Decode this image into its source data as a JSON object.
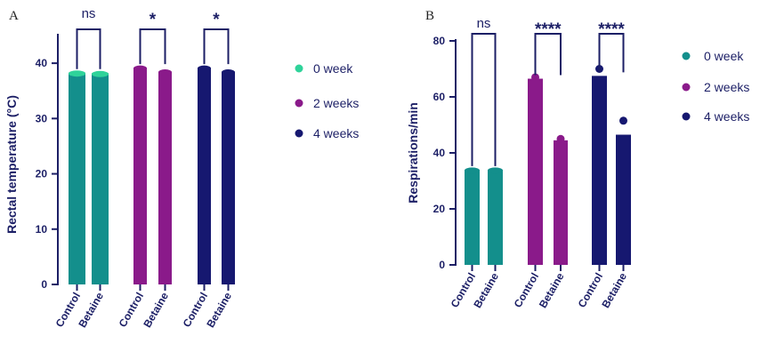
{
  "chart_data": [
    {
      "panel": "A",
      "type": "bar",
      "ylabel": "Rectal temperature (°C)",
      "ylim": [
        0,
        45
      ],
      "yticks": [
        0,
        10,
        20,
        30,
        40
      ],
      "categories": [
        "Control",
        "Betaine"
      ],
      "legend_position": "right",
      "series": [
        {
          "name": "0 week",
          "color": "#138f8c",
          "point_color": "#2fd39a",
          "values": [
            38.3,
            38.2
          ],
          "significance": "ns"
        },
        {
          "name": "2 weeks",
          "color": "#8a1a8a",
          "point_color": "#8a1a8a",
          "values": [
            39.2,
            38.5
          ],
          "significance": "*"
        },
        {
          "name": "4 weeks",
          "color": "#161870",
          "point_color": "#161870",
          "values": [
            39.2,
            38.5
          ],
          "significance": "*"
        }
      ]
    },
    {
      "panel": "B",
      "type": "bar",
      "ylabel": "Respirations/min",
      "ylim": [
        0,
        80
      ],
      "yticks": [
        0,
        20,
        40,
        60,
        80
      ],
      "categories": [
        "Control",
        "Betaine"
      ],
      "legend_position": "right",
      "series": [
        {
          "name": "0 week",
          "color": "#138f8c",
          "point_color": "#138f8c",
          "values": [
            34,
            34
          ],
          "points": [
            34,
            34
          ],
          "significance": "ns"
        },
        {
          "name": "2 weeks",
          "color": "#8a1a8a",
          "point_color": "#8a1a8a",
          "values": [
            66.5,
            44.5
          ],
          "points": [
            67,
            45
          ],
          "significance": "****"
        },
        {
          "name": "4 weeks",
          "color": "#161870",
          "point_color": "#161870",
          "values": [
            67.5,
            46.5
          ],
          "points": [
            70,
            51.5
          ],
          "significance": "****"
        }
      ]
    }
  ]
}
